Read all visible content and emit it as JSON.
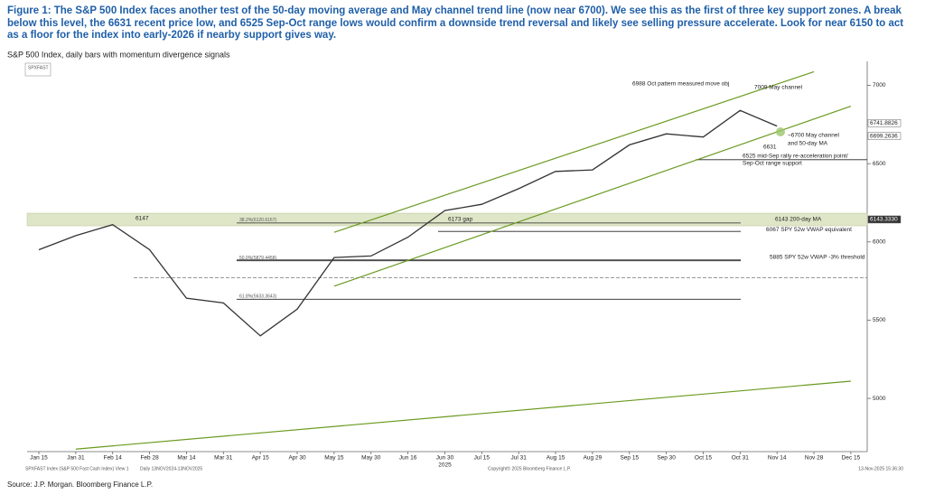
{
  "caption": "Figure 1: The S&P 500 Index faces another test of the 50-day moving average and May channel trend line (now near 6700). We see this as the first of three key support zones. A break below this level, the 6631 recent price low, and 6525 Sep-Oct range lows would confirm a downside trend reversal and likely see selling pressure accelerate. Look for near 6150 to act as a floor for the index into early-2026 if nearby support gives way.",
  "source": "Source: J.P. Morgan. Bloomberg Finance L.P.",
  "chart_data": {
    "type": "line",
    "subtitle": "S&P 500 Index, daily bars with momentum divergence signals",
    "ticker_box": "SPXFAST",
    "categories": [
      "Jan 15",
      "Jan 31",
      "Feb 14",
      "Feb 28",
      "Mar 14",
      "Mar 31",
      "Apr 15",
      "Apr 30",
      "May 15",
      "May 30",
      "Jun 16",
      "Jun 30",
      "Jul 15",
      "Jul 31",
      "Aug 15",
      "Aug 29",
      "Sep 15",
      "Sep 30",
      "Oct 15",
      "Oct 31",
      "Nov 14",
      "Nov 28",
      "Dec 15"
    ],
    "year_label": "2025",
    "series": [
      {
        "color": "#333333",
        "values": [
          5950,
          6040,
          6110,
          5950,
          5640,
          5610,
          5400,
          5570,
          5900,
          5910,
          6030,
          6200,
          6240,
          6340,
          6450,
          6460,
          6620,
          6690,
          6670,
          6840,
          6740,
          null,
          null
        ]
      }
    ],
    "ylim": [
      4660,
      7130
    ],
    "yticks": [
      5000,
      5500,
      6000,
      6500,
      7000
    ],
    "trendlines": [
      {
        "color": "#6a9a1f",
        "x": [
          "May 15",
          "Nov 28"
        ],
        "values": [
          6061,
          7087
        ]
      },
      {
        "color": "#6a9a1f",
        "x": [
          "May 15",
          "Dec 15"
        ],
        "values": [
          5717,
          6867
        ]
      },
      {
        "color": "#6a9a1f",
        "x": [
          "Jan 31",
          "Dec 15"
        ],
        "values": [
          4676,
          5110
        ]
      }
    ],
    "levels": [
      {
        "value": 6143,
        "label": [
          "6143 200-day MA"
        ],
        "band": true
      },
      {
        "value": 6525,
        "label": [
          "6525 mid-Sep rally re-acceleration point/",
          "Sep-Oct range support"
        ]
      },
      {
        "value": 6067,
        "label": [
          "6067 SPY 52w VWAP equivalent"
        ]
      },
      {
        "value": 5885,
        "label": [
          "5885 SPY 52w VWAP -3% threshold"
        ]
      },
      {
        "value": 6120.6167,
        "label": [
          "38.2%(6120.6167)"
        ]
      },
      {
        "value": 5879.4458,
        "label": [
          "50.0%(5879.4458)"
        ]
      },
      {
        "value": 5633.3643,
        "label": [
          "61.8%(5633.3643)"
        ]
      },
      {
        "value": 5770,
        "dashed": true
      }
    ],
    "price_tags": [
      6741.8826,
      6699.2636,
      {
        "value": 6143.333,
        "label": "6143.3330"
      }
    ],
    "annotations": [
      "6988 Oct pattern measured move obj",
      "7009 May channel",
      "~6700 May channel",
      "and 50-day MA",
      "6631",
      "6147",
      "6173 gap"
    ],
    "footer": [
      "SPXFAST Index (S&P 500 Fast Cash Index) View 1",
      "Daily 13NOV2024-13NOV2025",
      "Copyright© 2025 Bloomberg Finance L.P.",
      "13-Nov-2025 15:36:30"
    ]
  }
}
